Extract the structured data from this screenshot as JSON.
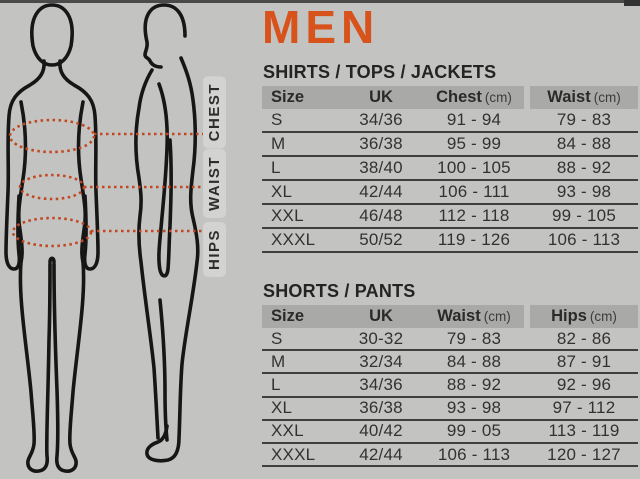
{
  "page": {
    "background": "#c3c3c1",
    "top_strip_color": "#4a4a4a"
  },
  "header": {
    "title": "MEN",
    "accent_color": "#d8521c"
  },
  "diagram": {
    "measure_labels": [
      "CHEST",
      "WAIST",
      "HIPS"
    ],
    "outline_color": "#161616",
    "measure_line_color": "#c2461f",
    "label_background": "#d3d3d1"
  },
  "tables": [
    {
      "title": "SHIRTS / TOPS / JACKETS",
      "columns": [
        {
          "label": "Size",
          "unit": ""
        },
        {
          "label": "UK",
          "unit": ""
        },
        {
          "label": "Chest",
          "unit": "(cm)"
        },
        {
          "label": "Waist",
          "unit": "(cm)"
        }
      ],
      "rows": [
        [
          "S",
          "34/36",
          "91 - 94",
          "79 - 83"
        ],
        [
          "M",
          "36/38",
          "95 - 99",
          "84 - 88"
        ],
        [
          "L",
          "38/40",
          "100 - 105",
          "88 - 92"
        ],
        [
          "XL",
          "42/44",
          "106 - 111",
          "93 - 98"
        ],
        [
          "XXL",
          "46/48",
          "112 - 118",
          "99 - 105"
        ],
        [
          "XXXL",
          "50/52",
          "119 - 126",
          "106 - 113"
        ]
      ]
    },
    {
      "title": "SHORTS / PANTS",
      "columns": [
        {
          "label": "Size",
          "unit": ""
        },
        {
          "label": "UK",
          "unit": ""
        },
        {
          "label": "Waist",
          "unit": "(cm)"
        },
        {
          "label": "Hips",
          "unit": "(cm)"
        }
      ],
      "rows": [
        [
          "S",
          "30-32",
          "79 - 83",
          "82 - 86"
        ],
        [
          "M",
          "32/34",
          "84 - 88",
          "87 - 91"
        ],
        [
          "L",
          "34/36",
          "88 - 92",
          "92 - 96"
        ],
        [
          "XL",
          "36/38",
          "93 - 98",
          "97 - 112"
        ],
        [
          "XXL",
          "40/42",
          "99 - 05",
          "113 - 119"
        ],
        [
          "XXXL",
          "42/44",
          "106 - 113",
          "120 - 127"
        ]
      ]
    }
  ]
}
